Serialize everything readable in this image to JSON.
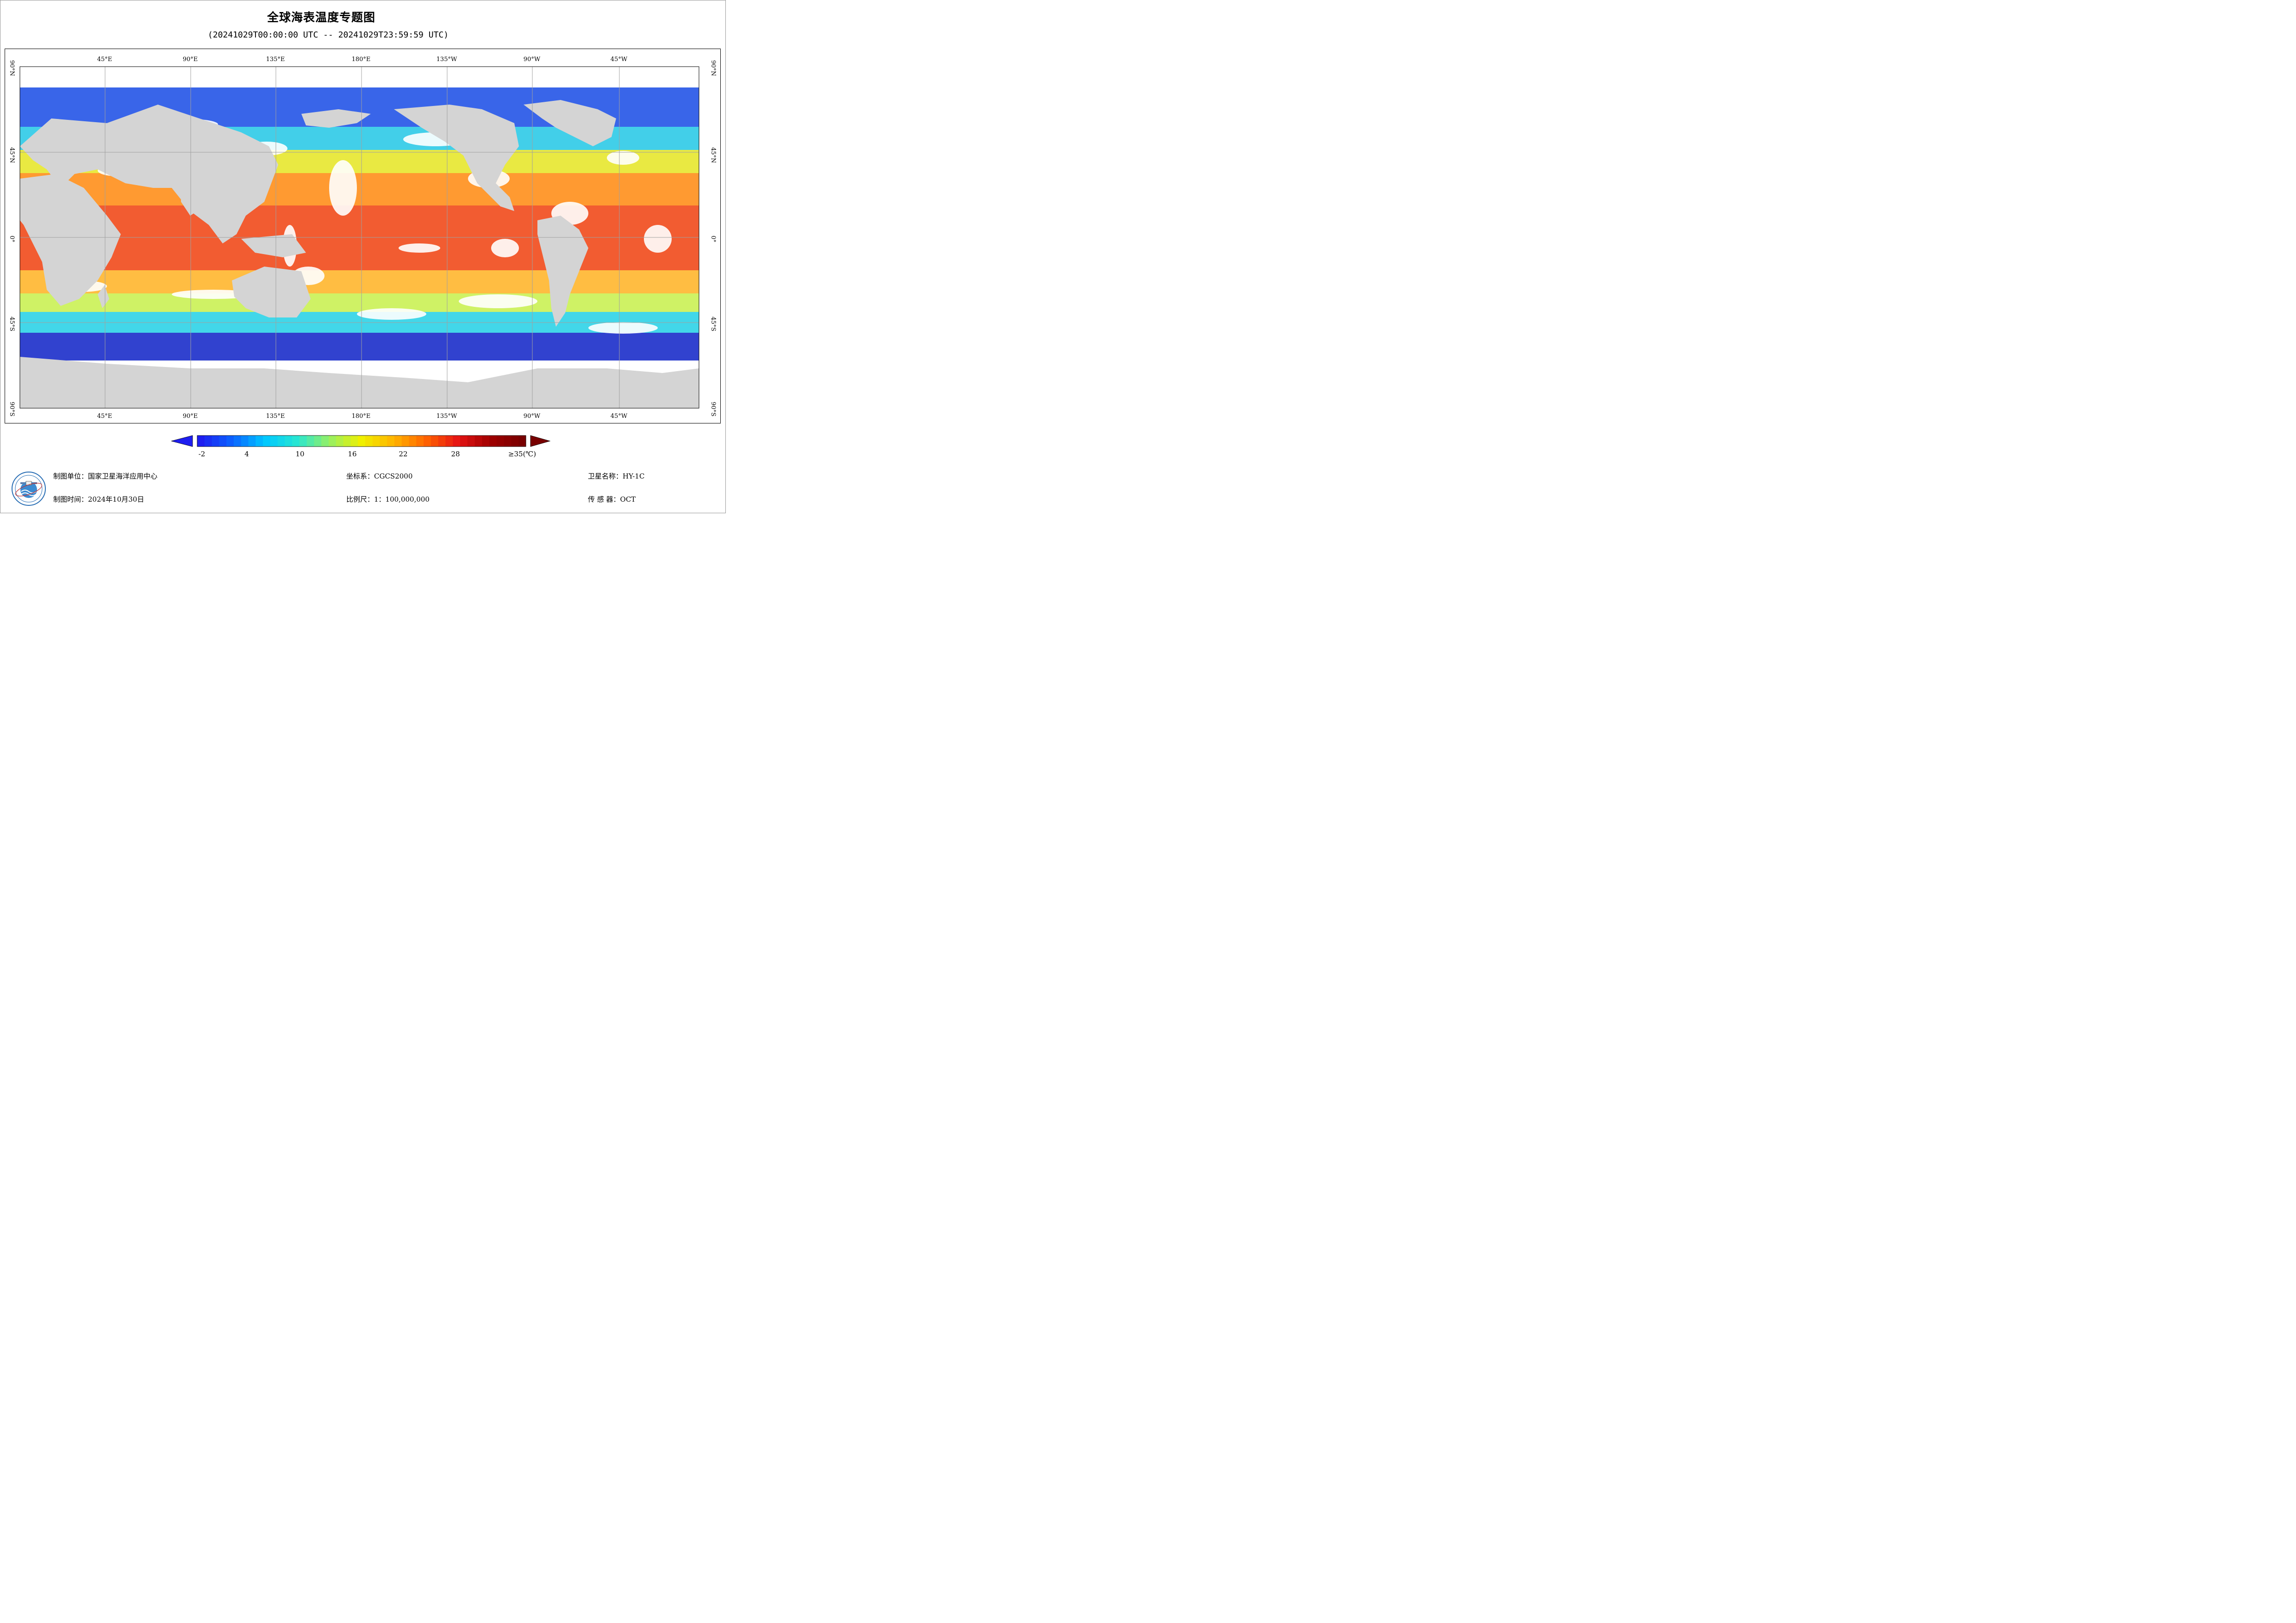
{
  "title": "全球海表温度专题图",
  "subtitle": "(20241029T00:00:00 UTC -- 20241029T23:59:59 UTC)",
  "map": {
    "projection": "equirectangular",
    "center_longitude": "180°E",
    "lon_labels": [
      "45°E",
      "90°E",
      "135°E",
      "180°E",
      "135°W",
      "90°W",
      "45°W"
    ],
    "lat_labels": [
      "90°N",
      "45°N",
      "0°",
      "45°S",
      "90°S"
    ],
    "grid": true,
    "land_color": "#d4d4d4",
    "no_data_color": "#ffffff"
  },
  "colorbar": {
    "ticks": [
      "-2",
      "4",
      "10",
      "16",
      "22",
      "28",
      "≥35(℃)"
    ],
    "min": -2,
    "max": 35,
    "extend": "both",
    "colors": [
      "#1e1ef0",
      "#0a64ff",
      "#00c8ff",
      "#28e6d2",
      "#96f064",
      "#f0f000",
      "#ffb400",
      "#ff6400",
      "#e61414",
      "#a00000",
      "#780000"
    ]
  },
  "info": {
    "unit": "制图单位：国家卫星海洋应用中心",
    "time": "制图时间：2024年10月30日",
    "coord": "坐标系：CGCS2000",
    "scale": "比例尺：1：100,000,000",
    "satellite": "卫星名称：HY-1C",
    "sensor": "传 感 器：OCT"
  },
  "logo_icon": "nsoas-emblem-icon"
}
